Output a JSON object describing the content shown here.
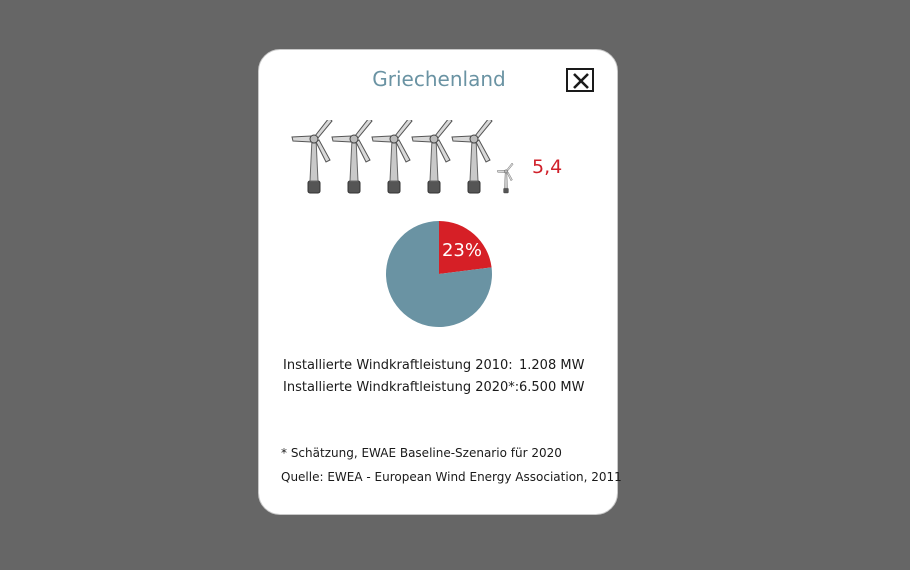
{
  "popup": {
    "title": "Griechenland",
    "close_icon": "close-x-icon",
    "turbine_icon": "wind-turbine-icon",
    "turbine_count": 5.4,
    "turbine_ratio_label": "5,4",
    "pie_label": "23%",
    "stats": [
      {
        "label": "Installierte Windkraftleistung 2010:",
        "value": "1.208 MW"
      },
      {
        "label": "Installierte Windkraftleistung 2020*:",
        "value": "6.500 MW"
      }
    ],
    "footnote": "* Schätzung, EWAE Baseline-Szenario für 2020",
    "source": "Quelle: EWEA - European Wind Energy Association, 2011"
  },
  "colors": {
    "background": "#666666",
    "title": "#6a93a3",
    "accent_red": "#d0202a",
    "pie_blue": "#6a93a3",
    "pie_red": "#d61f26"
  },
  "chart_data": {
    "type": "pie",
    "values": [
      23,
      77
    ],
    "labels": [
      "23%",
      ""
    ],
    "colors": [
      "#d61f26",
      "#6a93a3"
    ]
  }
}
